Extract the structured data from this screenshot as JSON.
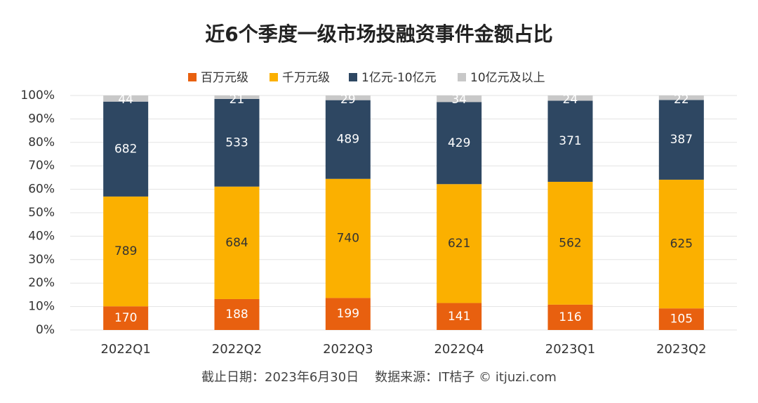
{
  "chart_data": {
    "type": "bar",
    "stack": "percent",
    "title": "近6个季度一级市场投融资事件金额占比",
    "categories": [
      "2022Q1",
      "2022Q2",
      "2022Q3",
      "2022Q4",
      "2023Q1",
      "2023Q2"
    ],
    "series": [
      {
        "name": "百万元级",
        "color": "#e8600f",
        "label_color": "#ffffff",
        "values": [
          170,
          188,
          199,
          141,
          116,
          105
        ]
      },
      {
        "name": "千万元级",
        "color": "#fbb000",
        "label_color": "#333333",
        "values": [
          789,
          684,
          740,
          621,
          562,
          625
        ]
      },
      {
        "name": "1亿元-10亿元",
        "color": "#2e4762",
        "label_color": "#ffffff",
        "values": [
          682,
          533,
          489,
          429,
          371,
          387
        ]
      },
      {
        "name": "10亿元及以上",
        "color": "#c8c8c8",
        "label_color": "#ffffff",
        "values": [
          44,
          21,
          29,
          34,
          24,
          22
        ]
      }
    ],
    "ylim": [
      0,
      100
    ],
    "yticks": [
      {
        "value": 0,
        "label": "0%"
      },
      {
        "value": 10,
        "label": "10%"
      },
      {
        "value": 20,
        "label": "20%"
      },
      {
        "value": 30,
        "label": "30%"
      },
      {
        "value": 40,
        "label": "40%"
      },
      {
        "value": 50,
        "label": "50%"
      },
      {
        "value": 60,
        "label": "60%"
      },
      {
        "value": 70,
        "label": "70%"
      },
      {
        "value": 80,
        "label": "80%"
      },
      {
        "value": 90,
        "label": "90%"
      },
      {
        "value": 100,
        "label": "100%"
      }
    ],
    "grid": true,
    "legend": "top",
    "source": "截止日期：2023年6月30日    数据来源：IT桔子 © itjuzi.com"
  }
}
